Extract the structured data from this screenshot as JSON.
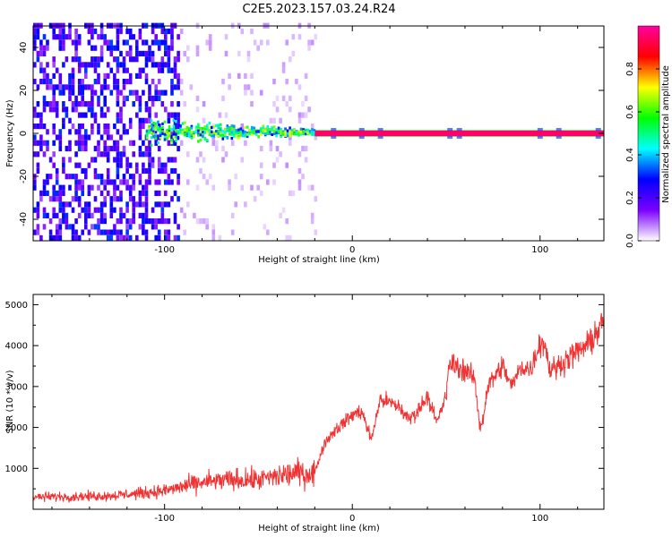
{
  "title": "C2E5.2023.157.03.24.R24",
  "chart_data": [
    {
      "type": "heatmap",
      "name": "spectrogram",
      "xlabel": "Height of straight line (km)",
      "ylabel": "Frequency (Hz)",
      "xlim": [
        -170,
        134
      ],
      "ylim": [
        -50,
        50
      ],
      "xticks": [
        -100,
        0,
        100
      ],
      "xtick_labels": [
        "-100",
        "0",
        "100"
      ],
      "yticks": [
        -40,
        -20,
        0,
        20,
        40
      ],
      "ytick_labels": [
        "-40",
        "-20",
        "0",
        "20",
        "40"
      ],
      "carrier_frequency_hz": 0,
      "colorbar": {
        "label": "Normalized spectral amplitude",
        "range": [
          0,
          1
        ],
        "ticks": [
          0,
          0.2,
          0.4,
          0.6,
          0.8
        ],
        "tick_labels": [
          "0.0",
          "0.2",
          "0.4",
          "0.6",
          "0.8"
        ],
        "colors": [
          "#ffffff",
          "#7b00ff",
          "#0000ff",
          "#00ffff",
          "#00ff00",
          "#ffff00",
          "#ff0000",
          "#ff00a0"
        ]
      },
      "regions": [
        {
          "x_from": -170,
          "x_to": -92,
          "description": "broadband noise",
          "amplitude": 0.25
        },
        {
          "x_from": -92,
          "x_to": -20,
          "description": "sparse noise",
          "amplitude": 0.05
        },
        {
          "x_from": -110,
          "x_to": -20,
          "description": "signal spread around carrier",
          "amplitude": 0.55
        },
        {
          "x_from": -20,
          "x_to": 134,
          "description": "narrow carrier line",
          "amplitude": 0.95
        }
      ]
    },
    {
      "type": "line",
      "name": "snr",
      "xlabel": "Height of straight line (km)",
      "ylabel": "SNR (10 * v/v)",
      "xlim": [
        -170,
        134
      ],
      "ylim": [
        0,
        5250
      ],
      "xticks": [
        -100,
        0,
        100
      ],
      "xtick_labels": [
        "-100",
        "0",
        "100"
      ],
      "yticks": [
        1000,
        2000,
        3000,
        4000,
        5000
      ],
      "ytick_labels": [
        "1000",
        "2000",
        "3000",
        "4000",
        "5000"
      ],
      "color": "#f03232",
      "x": [
        -170,
        -150,
        -130,
        -115,
        -100,
        -90,
        -80,
        -70,
        -60,
        -50,
        -40,
        -30,
        -25,
        -22,
        -20,
        -15,
        -10,
        -5,
        0,
        5,
        10,
        15,
        20,
        25,
        30,
        35,
        40,
        45,
        50,
        52,
        55,
        60,
        65,
        68,
        70,
        72,
        75,
        80,
        85,
        90,
        95,
        100,
        103,
        105,
        110,
        115,
        120,
        125,
        130,
        134
      ],
      "values": [
        300,
        310,
        330,
        380,
        450,
        560,
        650,
        700,
        720,
        720,
        800,
        900,
        850,
        900,
        900,
        1600,
        1900,
        2100,
        2300,
        2400,
        1700,
        2700,
        2600,
        2500,
        2200,
        2400,
        2800,
        2100,
        2800,
        3600,
        3500,
        3400,
        3200,
        2000,
        2300,
        3000,
        3200,
        3500,
        3000,
        3500,
        3400,
        4100,
        4000,
        3400,
        3500,
        3700,
        3850,
        4000,
        4300,
        4600
      ]
    }
  ]
}
